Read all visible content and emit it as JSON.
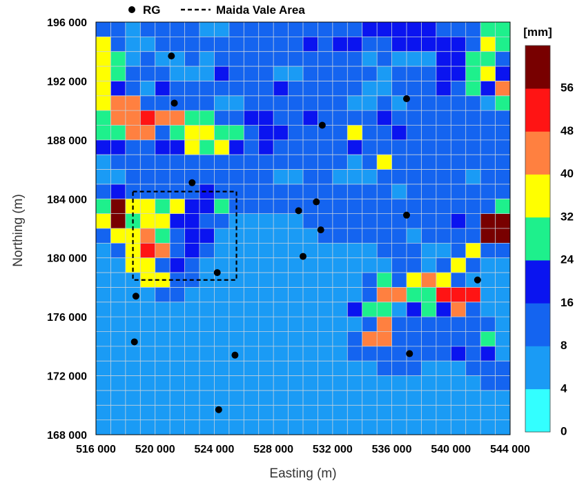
{
  "chart_data": {
    "type": "heatmap",
    "xlabel": "Easting (m)",
    "ylabel": "Northing (m)",
    "xlim": [
      516000,
      544000
    ],
    "ylim": [
      168000,
      196000
    ],
    "x_ticks": [
      516000,
      520000,
      524000,
      528000,
      532000,
      536000,
      540000,
      544000
    ],
    "y_ticks": [
      168000,
      172000,
      176000,
      180000,
      184000,
      188000,
      192000,
      196000
    ],
    "x_tick_labels": [
      "516 000",
      "520 000",
      "524 000",
      "528 000",
      "532 000",
      "536 000",
      "540 000",
      "544 000"
    ],
    "y_tick_labels": [
      "168 000",
      "172 000",
      "176 000",
      "180 000",
      "184 000",
      "188 000",
      "192 000",
      "196 000"
    ],
    "cell_size_m": 1000,
    "grid": true,
    "legend": {
      "placement": "top",
      "entries": [
        {
          "label": "RG",
          "marker": "dot"
        },
        {
          "label": "Maida Vale Area",
          "marker": "dashed-line"
        }
      ]
    },
    "colorbar": {
      "unit": "[mm]",
      "tick_labels": [
        "0",
        "4",
        "8",
        "16",
        "24",
        "32",
        "40",
        "48",
        "56"
      ],
      "bins": [
        {
          "from": 0,
          "to": 4,
          "color": "#33ffff"
        },
        {
          "from": 4,
          "to": 8,
          "color": "#1a9bf5"
        },
        {
          "from": 8,
          "to": 16,
          "color": "#1464f0"
        },
        {
          "from": 16,
          "to": 24,
          "color": "#0a14f0"
        },
        {
          "from": 24,
          "to": 32,
          "color": "#1ef08c"
        },
        {
          "from": 32,
          "to": 40,
          "color": "#ffff00"
        },
        {
          "from": 40,
          "to": 48,
          "color": "#ff8040"
        },
        {
          "from": 48,
          "to": 56,
          "color": "#ff1414"
        },
        {
          "from": 56,
          "to": 64,
          "color": "#780000"
        }
      ]
    },
    "row_order": "north_to_south",
    "code_legend": {
      "a": 0,
      "b": 1,
      "c": 2,
      "d": 3,
      "e": 4,
      "f": 5,
      "g": 6,
      "h": 7,
      "i": 8
    },
    "grid_codes": [
      "ccbccccbbcccccccccdddddccceed",
      "fcbbccccccccccdcddccdddddcfee",
      "febcbbcbccccccccccbcbbbddeeceb",
      "fecccbbbdcccbbcccccbcccddefdh",
      "fdcbdcccccccdcccccbbcccdcedgh",
      "fggcccccbbcccccccbbcbcccccbee",
      "egghggeeccddccdccccdcccccccc",
      "eeggceffeecddccccfccdccccccc",
      "ddccddfefdcdcccccdccccccccccc",
      "bccccccccccccccccbcfcccccccccc",
      "bbccccccccccbbccbbbccccccbccc",
      "cdcccccdccccccccccccbcccccccc",
      "eiffefddecccccccccccccccccce",
      "fieffddccbbbbbccccccccccdcii",
      "cffgecddbbbbbbbccccccbccccii",
      "bcfhgcdcbbbbbbbbbbbcccbbcfccb",
      "bbffcdcbbbbbbbbbbbbbccbcfcbbb",
      "bbbffccbbbbbbbbbbbcecfgfcbbb",
      "bbbbccbbbbbbbbbbbbcggeehhhb",
      "bbbbbbbbbbbbbbbbbdeebdedgcb",
      "bbbbbbbbbbbbbbbbbbcgcccccccb",
      "bbbbbbbbbbbbbbbbbcggcccccce",
      "bbbbbbbbbbbbbbbbbcccccccdcd",
      "bbbbbbbbbbbbbbbbbbbcccbbbcccb",
      "bbbbbbbbbbbbbbbbbbbbbbbbbbcc",
      "bbbbbbbbbbbbbbbbbbbbbbbbbbbbc",
      "bbbbbbbbbbbbbbbbbbbbbbbbbbbbb",
      "bbbbbbbbbbbbbbbbbbbbbbbbbbbbb"
    ],
    "rain_gauges": [
      {
        "x": 521100,
        "y": 193700
      },
      {
        "x": 521300,
        "y": 190500
      },
      {
        "x": 531300,
        "y": 189000
      },
      {
        "x": 537000,
        "y": 190800
      },
      {
        "x": 522500,
        "y": 185100
      },
      {
        "x": 529700,
        "y": 183200
      },
      {
        "x": 530900,
        "y": 183800
      },
      {
        "x": 531200,
        "y": 181900
      },
      {
        "x": 537000,
        "y": 182900
      },
      {
        "x": 530000,
        "y": 180100
      },
      {
        "x": 524200,
        "y": 179000
      },
      {
        "x": 541800,
        "y": 178500
      },
      {
        "x": 518700,
        "y": 177400
      },
      {
        "x": 518600,
        "y": 174300
      },
      {
        "x": 525400,
        "y": 173400
      },
      {
        "x": 537200,
        "y": 173500
      },
      {
        "x": 524300,
        "y": 169700
      }
    ],
    "maida_vale_area": {
      "x_min": 518500,
      "x_max": 525500,
      "y_min": 178500,
      "y_max": 184500
    }
  }
}
